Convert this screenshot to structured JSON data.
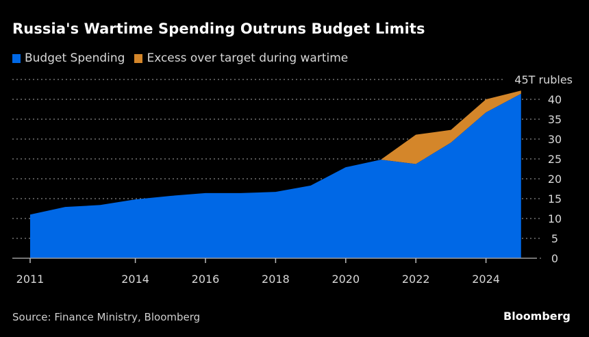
{
  "header": {
    "title": "Russia's Wartime Spending Outruns Budget Limits"
  },
  "legend": [
    {
      "label": "Budget Spending",
      "color": "#0068E6"
    },
    {
      "label": "Excess over target during wartime",
      "color": "#D4862A"
    }
  ],
  "footer": {
    "source": "Source: Finance Ministry, Bloomberg",
    "brand": "Bloomberg"
  },
  "chart_data": {
    "type": "area",
    "title": "Russia's Wartime Spending Outruns Budget Limits",
    "xlabel": "",
    "ylabel": "",
    "unit_label": "45T rubles",
    "x": [
      2011,
      2012,
      2013,
      2014,
      2015,
      2016,
      2017,
      2018,
      2019,
      2020,
      2021,
      2022,
      2023,
      2024,
      2025
    ],
    "x_tick_labels": [
      "2011",
      "2014",
      "2016",
      "2018",
      "2020",
      "2022",
      "2024"
    ],
    "y_tick_labels": [
      "0",
      "5",
      "10",
      "15",
      "20",
      "25",
      "30",
      "35",
      "40"
    ],
    "ylim": [
      0,
      45
    ],
    "xlim": [
      2011,
      2025.8
    ],
    "grid": true,
    "y_axis_side": "right",
    "legend_position": "top-left",
    "series": [
      {
        "name": "Budget Spending",
        "color": "#0068E6",
        "values": [
          11.0,
          12.9,
          13.4,
          14.8,
          15.7,
          16.4,
          16.4,
          16.7,
          18.3,
          22.9,
          24.8,
          23.7,
          29.1,
          36.7,
          41.4
        ]
      },
      {
        "name": "Excess over target during wartime",
        "color": "#D4862A",
        "x": [
          2021,
          2022,
          2023,
          2024,
          2025
        ],
        "values": [
          0,
          7.4,
          3.2,
          3.3,
          0.8
        ],
        "stacked_total": [
          24.8,
          31.1,
          32.3,
          40.0,
          42.2
        ]
      }
    ]
  }
}
